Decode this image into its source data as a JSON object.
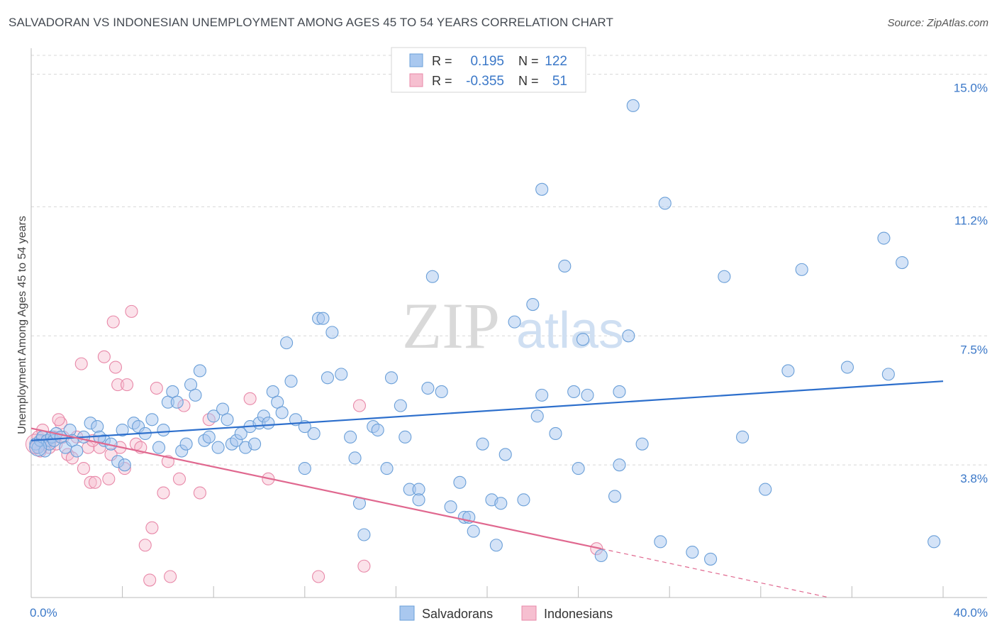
{
  "title": "SALVADORAN VS INDONESIAN UNEMPLOYMENT AMONG AGES 45 TO 54 YEARS CORRELATION CHART",
  "source": "Source: ZipAtlas.com",
  "watermark": {
    "zip": "ZIP",
    "atlas": "atlas"
  },
  "colors": {
    "blue_fill": "#a9c8ef",
    "blue_stroke": "#6a9fd8",
    "blue_line": "#2d6fcc",
    "pink_fill": "#f6bfd0",
    "pink_stroke": "#e888a8",
    "pink_line": "#e0688f",
    "axis_text": "#3b78c8",
    "grid": "#d8d8d8"
  },
  "legend": {
    "rows": [
      {
        "series": "Salvadorans",
        "r_label": "R =",
        "r_value": "0.195",
        "n_label": "N =",
        "n_value": "122"
      },
      {
        "series": "Indonesians",
        "r_label": "R =",
        "r_value": "-0.355",
        "n_label": "N =",
        "n_value": "51"
      }
    ]
  },
  "chart_data": {
    "type": "scatter",
    "ylabel": "Unemployment Among Ages 45 to 54 years",
    "xlim": [
      0,
      40
    ],
    "ylim": [
      0,
      15.5
    ],
    "x_tick_labels": [
      "0.0%",
      "40.0%"
    ],
    "y_tick_labels": [
      {
        "value": 3.8,
        "label": "3.8%"
      },
      {
        "value": 7.5,
        "label": "7.5%"
      },
      {
        "value": 11.2,
        "label": "11.2%"
      },
      {
        "value": 15.0,
        "label": "15.0%"
      }
    ],
    "bottom_legend": [
      "Salvadorans",
      "Indonesians"
    ],
    "series": [
      {
        "name": "Salvadorans",
        "trend": {
          "x0": 0,
          "y0": 4.5,
          "x1": 40,
          "y1": 6.2
        },
        "points": [
          [
            0.2,
            4.4
          ],
          [
            0.3,
            4.3
          ],
          [
            0.4,
            4.5
          ],
          [
            0.5,
            4.6
          ],
          [
            0.6,
            4.2
          ],
          [
            0.7,
            4.5
          ],
          [
            0.8,
            4.4
          ],
          [
            0.9,
            4.6
          ],
          [
            1.0,
            4.5
          ],
          [
            1.1,
            4.7
          ],
          [
            1.3,
            4.6
          ],
          [
            1.5,
            4.3
          ],
          [
            1.7,
            4.8
          ],
          [
            1.8,
            4.5
          ],
          [
            2.0,
            4.2
          ],
          [
            2.3,
            4.6
          ],
          [
            2.6,
            5.0
          ],
          [
            2.9,
            4.9
          ],
          [
            3.2,
            4.5
          ],
          [
            3.5,
            4.4
          ],
          [
            3.8,
            3.9
          ],
          [
            4.1,
            3.8
          ],
          [
            4.0,
            4.8
          ],
          [
            4.5,
            5.0
          ],
          [
            4.7,
            4.9
          ],
          [
            5.0,
            4.7
          ],
          [
            5.3,
            5.1
          ],
          [
            5.6,
            4.3
          ],
          [
            5.8,
            4.8
          ],
          [
            6.0,
            5.6
          ],
          [
            6.2,
            5.9
          ],
          [
            6.4,
            5.6
          ],
          [
            6.6,
            4.2
          ],
          [
            6.8,
            4.4
          ],
          [
            7.0,
            6.1
          ],
          [
            7.2,
            5.8
          ],
          [
            7.4,
            6.5
          ],
          [
            7.6,
            4.5
          ],
          [
            7.8,
            4.6
          ],
          [
            8.0,
            5.2
          ],
          [
            8.2,
            4.3
          ],
          [
            8.4,
            5.4
          ],
          [
            8.6,
            5.1
          ],
          [
            8.8,
            4.4
          ],
          [
            9.0,
            4.5
          ],
          [
            9.2,
            4.7
          ],
          [
            9.4,
            4.3
          ],
          [
            9.6,
            4.9
          ],
          [
            9.8,
            4.4
          ],
          [
            10.0,
            5.0
          ],
          [
            10.2,
            5.2
          ],
          [
            10.4,
            5.0
          ],
          [
            10.6,
            5.9
          ],
          [
            10.8,
            5.6
          ],
          [
            11.0,
            5.3
          ],
          [
            11.2,
            7.3
          ],
          [
            11.4,
            6.2
          ],
          [
            11.6,
            5.1
          ],
          [
            12.0,
            3.7
          ],
          [
            12.4,
            4.7
          ],
          [
            12.6,
            8.0
          ],
          [
            12.8,
            8.0
          ],
          [
            13.0,
            6.3
          ],
          [
            13.2,
            7.6
          ],
          [
            13.6,
            6.4
          ],
          [
            14.0,
            4.6
          ],
          [
            14.2,
            4.0
          ],
          [
            14.4,
            2.7
          ],
          [
            14.6,
            1.8
          ],
          [
            15.0,
            4.9
          ],
          [
            15.2,
            4.8
          ],
          [
            15.6,
            3.7
          ],
          [
            15.8,
            6.3
          ],
          [
            16.2,
            5.5
          ],
          [
            16.4,
            4.6
          ],
          [
            16.6,
            3.1
          ],
          [
            17.0,
            3.1
          ],
          [
            17.0,
            2.8
          ],
          [
            17.4,
            6.0
          ],
          [
            17.6,
            9.2
          ],
          [
            18.0,
            5.9
          ],
          [
            18.4,
            2.6
          ],
          [
            18.8,
            3.3
          ],
          [
            19.0,
            2.3
          ],
          [
            19.2,
            2.3
          ],
          [
            19.4,
            1.9
          ],
          [
            19.8,
            4.4
          ],
          [
            20.2,
            2.8
          ],
          [
            20.4,
            1.5
          ],
          [
            20.6,
            2.7
          ],
          [
            20.8,
            4.1
          ],
          [
            21.2,
            7.9
          ],
          [
            21.6,
            2.8
          ],
          [
            22.0,
            8.4
          ],
          [
            22.2,
            5.2
          ],
          [
            22.4,
            11.7
          ],
          [
            22.4,
            5.8
          ],
          [
            23.0,
            4.7
          ],
          [
            23.4,
            9.5
          ],
          [
            23.8,
            5.9
          ],
          [
            24.0,
            3.7
          ],
          [
            24.2,
            7.4
          ],
          [
            24.4,
            5.8
          ],
          [
            25.0,
            1.2
          ],
          [
            25.6,
            2.9
          ],
          [
            25.8,
            3.8
          ],
          [
            25.8,
            5.9
          ],
          [
            26.2,
            7.5
          ],
          [
            26.4,
            14.1
          ],
          [
            26.8,
            4.4
          ],
          [
            27.6,
            1.6
          ],
          [
            27.8,
            11.3
          ],
          [
            29.0,
            1.3
          ],
          [
            29.8,
            1.1
          ],
          [
            30.4,
            9.2
          ],
          [
            31.2,
            4.6
          ],
          [
            32.2,
            3.1
          ],
          [
            33.2,
            6.5
          ],
          [
            33.8,
            9.4
          ],
          [
            35.8,
            6.6
          ],
          [
            37.4,
            10.3
          ],
          [
            37.6,
            6.4
          ],
          [
            38.2,
            9.6
          ],
          [
            39.6,
            1.6
          ],
          [
            12.0,
            4.9
          ],
          [
            3.0,
            4.6
          ]
        ]
      },
      {
        "name": "Indonesians",
        "trend": {
          "x0": 0,
          "y0": 4.85,
          "x1": 25,
          "y1": 1.4
        },
        "trend_dashed_end": {
          "x": 40,
          "y": -0.7
        },
        "points": [
          [
            0.2,
            4.3
          ],
          [
            0.3,
            4.6
          ],
          [
            0.4,
            4.2
          ],
          [
            0.5,
            4.8
          ],
          [
            0.6,
            4.4
          ],
          [
            0.7,
            4.5
          ],
          [
            0.8,
            4.3
          ],
          [
            1.0,
            4.6
          ],
          [
            1.1,
            4.4
          ],
          [
            1.3,
            5.0
          ],
          [
            1.4,
            4.6
          ],
          [
            1.6,
            4.1
          ],
          [
            1.8,
            4.0
          ],
          [
            2.0,
            4.6
          ],
          [
            2.2,
            6.7
          ],
          [
            2.3,
            3.7
          ],
          [
            2.5,
            4.3
          ],
          [
            2.6,
            3.3
          ],
          [
            2.8,
            3.3
          ],
          [
            3.0,
            4.3
          ],
          [
            3.2,
            6.9
          ],
          [
            3.4,
            3.4
          ],
          [
            3.5,
            4.1
          ],
          [
            3.6,
            7.9
          ],
          [
            3.7,
            6.6
          ],
          [
            3.8,
            6.1
          ],
          [
            3.9,
            4.3
          ],
          [
            4.1,
            3.7
          ],
          [
            4.2,
            6.1
          ],
          [
            4.4,
            8.2
          ],
          [
            4.6,
            4.4
          ],
          [
            4.8,
            4.3
          ],
          [
            5.0,
            1.5
          ],
          [
            5.2,
            0.5
          ],
          [
            5.3,
            2.0
          ],
          [
            5.5,
            6.0
          ],
          [
            5.8,
            3.0
          ],
          [
            6.0,
            3.9
          ],
          [
            6.1,
            0.6
          ],
          [
            6.5,
            3.4
          ],
          [
            6.7,
            5.5
          ],
          [
            7.4,
            3.0
          ],
          [
            7.8,
            5.1
          ],
          [
            9.6,
            5.7
          ],
          [
            10.4,
            3.4
          ],
          [
            12.6,
            0.6
          ],
          [
            14.4,
            5.5
          ],
          [
            14.6,
            0.9
          ],
          [
            24.8,
            1.4
          ],
          [
            1.2,
            5.1
          ],
          [
            2.7,
            4.5
          ]
        ]
      }
    ]
  }
}
